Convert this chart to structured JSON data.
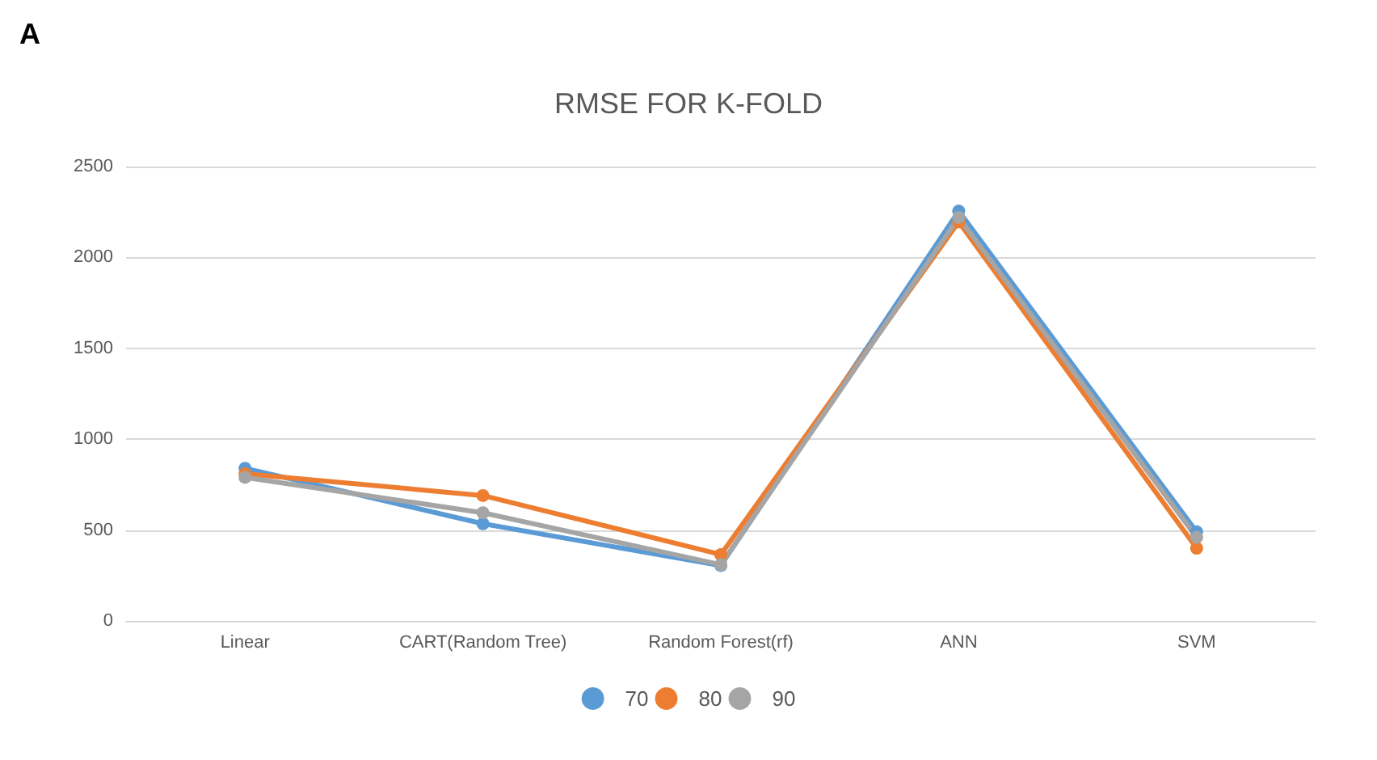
{
  "chart_data": {
    "type": "line",
    "title": "RMSE FOR K-FOLD",
    "annotations": [
      "A"
    ],
    "categories": [
      "Linear",
      "CART(Random Tree)",
      "Random Forest(rf)",
      "ANN",
      "SVM"
    ],
    "series": [
      {
        "name": "70",
        "color": "#5b9bd5",
        "values": [
          840,
          535,
          305,
          2255,
          490
        ]
      },
      {
        "name": "80",
        "color": "#ed7d31",
        "values": [
          810,
          690,
          365,
          2195,
          400
        ]
      },
      {
        "name": "90",
        "color": "#a5a5a5",
        "values": [
          790,
          595,
          310,
          2220,
          460
        ]
      }
    ],
    "ylim": [
      0,
      2500
    ],
    "yticks": [
      0,
      500,
      1000,
      1500,
      2000,
      2500
    ],
    "grid": "y",
    "legend": "bottom",
    "marker": "circle",
    "line_style": "solid"
  }
}
